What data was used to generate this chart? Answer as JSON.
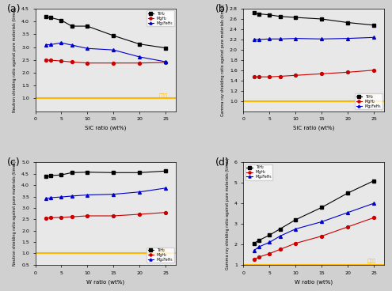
{
  "panel_labels": [
    "(a)",
    "(b)",
    "(c)",
    "(d)"
  ],
  "sic_x": [
    2,
    3,
    5,
    7,
    10,
    15,
    20,
    25
  ],
  "w_x": [
    2,
    3,
    5,
    7,
    10,
    15,
    20,
    25
  ],
  "a_TiH2": [
    4.18,
    4.15,
    4.05,
    3.82,
    3.82,
    3.45,
    3.12,
    2.97
  ],
  "a_MgH2": [
    2.49,
    2.49,
    2.46,
    2.42,
    2.38,
    2.38,
    2.38,
    2.4
  ],
  "a_Mg2FeH6": [
    3.09,
    3.1,
    3.17,
    3.08,
    2.95,
    2.89,
    2.62,
    2.43
  ],
  "b_TiH2": [
    2.72,
    2.7,
    2.68,
    2.65,
    2.63,
    2.6,
    2.53,
    2.48
  ],
  "b_MgH2": [
    1.47,
    1.47,
    1.47,
    1.48,
    1.5,
    1.53,
    1.56,
    1.6
  ],
  "b_Mg2FeH6": [
    2.2,
    2.2,
    2.21,
    2.21,
    2.22,
    2.21,
    2.22,
    2.24
  ],
  "c_TiH2": [
    4.37,
    4.42,
    4.45,
    4.55,
    4.57,
    4.55,
    4.55,
    4.62
  ],
  "c_MgH2": [
    2.55,
    2.57,
    2.58,
    2.61,
    2.65,
    2.65,
    2.72,
    2.8
  ],
  "c_Mg2FeH6": [
    3.4,
    3.45,
    3.48,
    3.52,
    3.57,
    3.6,
    3.7,
    3.87
  ],
  "d_TiH2": [
    2.05,
    2.2,
    2.45,
    2.75,
    3.2,
    3.8,
    4.5,
    5.1
  ],
  "d_MgH2": [
    1.25,
    1.38,
    1.55,
    1.75,
    2.05,
    2.4,
    2.85,
    3.3
  ],
  "d_Mg2FeH6": [
    1.7,
    1.88,
    2.1,
    2.4,
    2.75,
    3.1,
    3.55,
    4.0
  ],
  "color_TiH2": "#000000",
  "color_MgH2": "#cc0000",
  "color_Mg2FeH6": "#0000cc",
  "color_ref_line": "#FFB800",
  "ylabel_a": "Neutron shielding ratio against pure materials (times)",
  "ylabel_b": "Gamma ray shielding ratio against pure materials (times)",
  "ylabel_c": "Neutron shielding ratio against pure materials (times)",
  "ylabel_d": "Gamma ray shielding ratio against pure materials (times)",
  "xlabel_sic": "SiC ratio (wt%)",
  "xlabel_w": "W ratio (wt%)",
  "ylim_a": [
    0.5,
    4.5
  ],
  "ylim_b": [
    0.8,
    2.8
  ],
  "ylim_c": [
    0.5,
    5.0
  ],
  "ylim_d": [
    1.0,
    6.0
  ],
  "yticks_a": [
    1.0,
    1.5,
    2.0,
    2.5,
    3.0,
    3.5,
    4.0,
    4.5
  ],
  "yticks_b": [
    1.0,
    1.2,
    1.4,
    1.6,
    1.8,
    2.0,
    2.2,
    2.4,
    2.6,
    2.8
  ],
  "yticks_c": [
    0.5,
    1.0,
    1.5,
    2.0,
    2.5,
    3.0,
    3.5,
    4.0,
    4.5,
    5.0
  ],
  "yticks_d": [
    1.0,
    2.0,
    3.0,
    4.0,
    5.0,
    6.0
  ],
  "legend_TiH2": "TiH₂",
  "legend_MgH2": "MgH₂",
  "legend_Mg2FeH6": "Mg₂FeH₆",
  "ref_label": "단일상",
  "bg_color": "#e8e8e8",
  "fig_bg": "#d0d0d0"
}
